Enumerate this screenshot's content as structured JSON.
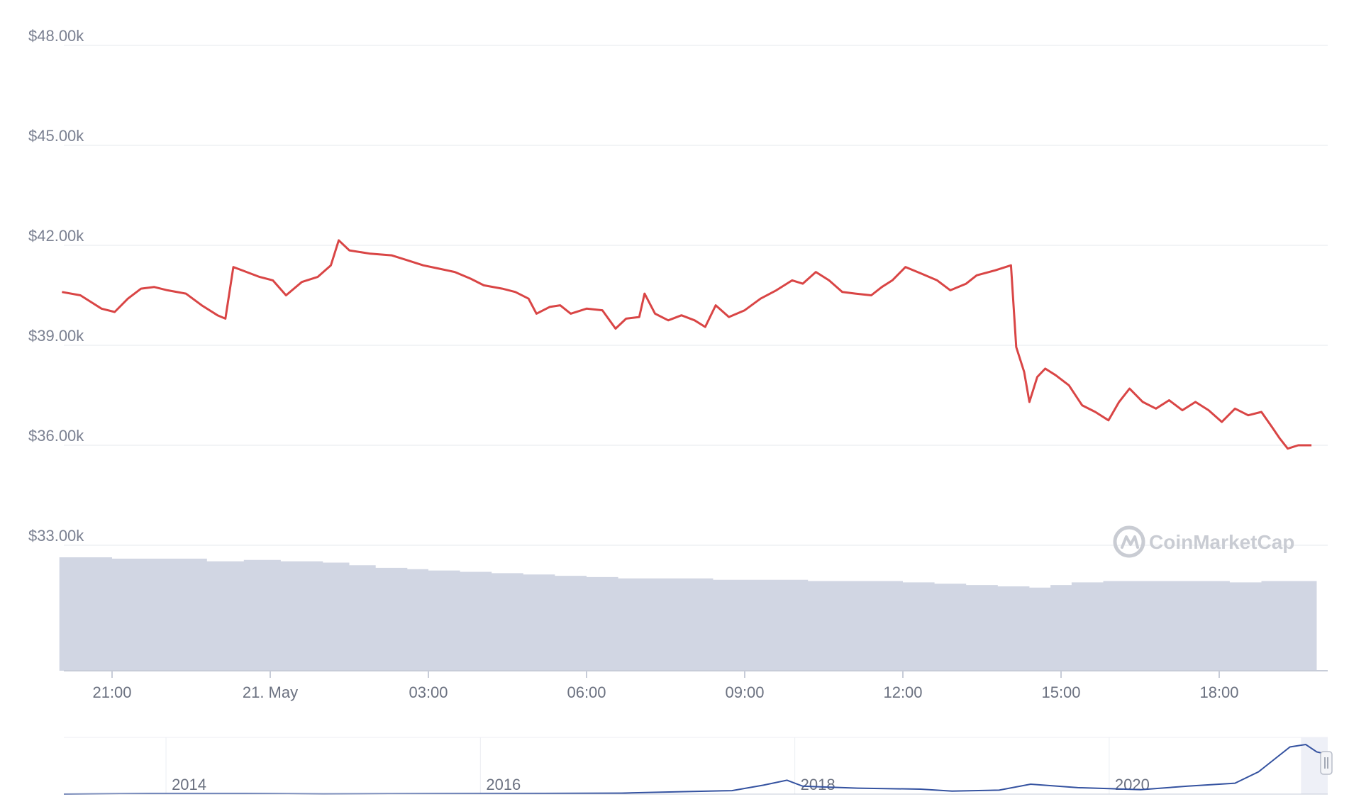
{
  "chart_data": {
    "type": "line",
    "title": "",
    "xlabel": "",
    "ylabel": "",
    "y_axis": {
      "range": [
        30000,
        48000
      ],
      "ticks": [
        {
          "value": 48000,
          "label": "$48.00k"
        },
        {
          "value": 45000,
          "label": "$45.00k"
        },
        {
          "value": 42000,
          "label": "$42.00k"
        },
        {
          "value": 39000,
          "label": "$39.00k"
        },
        {
          "value": 36000,
          "label": "$36.00k"
        },
        {
          "value": 33000,
          "label": "$33.00k"
        }
      ]
    },
    "x_axis": {
      "range_hours": [
        20.0,
        43.85
      ],
      "ticks": [
        {
          "value": 21,
          "label": "21:00"
        },
        {
          "value": 24,
          "label": "21. May"
        },
        {
          "value": 27,
          "label": "03:00"
        },
        {
          "value": 30,
          "label": "06:00"
        },
        {
          "value": 33,
          "label": "09:00"
        },
        {
          "value": 36,
          "label": "12:00"
        },
        {
          "value": 39,
          "label": "15:00"
        },
        {
          "value": 42,
          "label": "18:00"
        }
      ]
    },
    "grid": true,
    "price_series": {
      "color": "#d94545",
      "points": [
        [
          20.05,
          40.6
        ],
        [
          20.4,
          40.5
        ],
        [
          20.8,
          40.1
        ],
        [
          21.05,
          40.0
        ],
        [
          21.3,
          40.4
        ],
        [
          21.55,
          40.7
        ],
        [
          21.8,
          40.75
        ],
        [
          22.05,
          40.65
        ],
        [
          22.4,
          40.55
        ],
        [
          22.7,
          40.2
        ],
        [
          23.0,
          39.9
        ],
        [
          23.15,
          39.8
        ],
        [
          23.3,
          41.35
        ],
        [
          23.55,
          41.2
        ],
        [
          23.8,
          41.05
        ],
        [
          24.05,
          40.95
        ],
        [
          24.3,
          40.5
        ],
        [
          24.6,
          40.9
        ],
        [
          24.9,
          41.05
        ],
        [
          25.15,
          41.4
        ],
        [
          25.3,
          42.15
        ],
        [
          25.5,
          41.85
        ],
        [
          25.9,
          41.75
        ],
        [
          26.3,
          41.7
        ],
        [
          26.6,
          41.55
        ],
        [
          26.9,
          41.4
        ],
        [
          27.2,
          41.3
        ],
        [
          27.5,
          41.2
        ],
        [
          27.8,
          41.0
        ],
        [
          28.05,
          40.8
        ],
        [
          28.4,
          40.7
        ],
        [
          28.65,
          40.6
        ],
        [
          28.9,
          40.4
        ],
        [
          29.05,
          39.95
        ],
        [
          29.3,
          40.15
        ],
        [
          29.5,
          40.2
        ],
        [
          29.7,
          39.95
        ],
        [
          30.0,
          40.1
        ],
        [
          30.3,
          40.05
        ],
        [
          30.55,
          39.5
        ],
        [
          30.75,
          39.8
        ],
        [
          31.0,
          39.85
        ],
        [
          31.1,
          40.55
        ],
        [
          31.3,
          39.95
        ],
        [
          31.55,
          39.75
        ],
        [
          31.8,
          39.9
        ],
        [
          32.05,
          39.75
        ],
        [
          32.25,
          39.55
        ],
        [
          32.45,
          40.2
        ],
        [
          32.7,
          39.85
        ],
        [
          33.0,
          40.05
        ],
        [
          33.3,
          40.4
        ],
        [
          33.6,
          40.65
        ],
        [
          33.9,
          40.95
        ],
        [
          34.1,
          40.85
        ],
        [
          34.35,
          41.2
        ],
        [
          34.6,
          40.95
        ],
        [
          34.85,
          40.6
        ],
        [
          35.1,
          40.55
        ],
        [
          35.4,
          40.5
        ],
        [
          35.6,
          40.75
        ],
        [
          35.8,
          40.95
        ],
        [
          36.05,
          41.35
        ],
        [
          36.35,
          41.15
        ],
        [
          36.65,
          40.95
        ],
        [
          36.9,
          40.65
        ],
        [
          37.2,
          40.85
        ],
        [
          37.4,
          41.1
        ],
        [
          37.75,
          41.25
        ],
        [
          37.95,
          41.35
        ],
        [
          38.05,
          41.4
        ],
        [
          38.15,
          38.95
        ],
        [
          38.3,
          38.2
        ],
        [
          38.4,
          37.3
        ],
        [
          38.55,
          38.05
        ],
        [
          38.7,
          38.3
        ],
        [
          38.9,
          38.1
        ],
        [
          39.15,
          37.8
        ],
        [
          39.4,
          37.2
        ],
        [
          39.65,
          37.0
        ],
        [
          39.9,
          36.75
        ],
        [
          40.1,
          37.3
        ],
        [
          40.3,
          37.7
        ],
        [
          40.55,
          37.3
        ],
        [
          40.8,
          37.1
        ],
        [
          41.05,
          37.35
        ],
        [
          41.3,
          37.05
        ],
        [
          41.55,
          37.3
        ],
        [
          41.8,
          37.05
        ],
        [
          42.05,
          36.7
        ],
        [
          42.3,
          37.1
        ],
        [
          42.55,
          36.9
        ],
        [
          42.8,
          37.0
        ],
        [
          43.0,
          36.55
        ],
        [
          43.15,
          36.2
        ],
        [
          43.3,
          35.9
        ],
        [
          43.5,
          36.0
        ],
        [
          43.75,
          36.0
        ]
      ]
    },
    "volume_series": {
      "color": "#d1d6e3",
      "unit": "relative",
      "range": [
        0,
        1
      ],
      "points": [
        [
          20.0,
          0.86
        ],
        [
          21.0,
          0.85
        ],
        [
          22.0,
          0.85
        ],
        [
          22.8,
          0.83
        ],
        [
          23.5,
          0.84
        ],
        [
          24.2,
          0.83
        ],
        [
          25.0,
          0.82
        ],
        [
          25.5,
          0.8
        ],
        [
          26.0,
          0.78
        ],
        [
          26.6,
          0.77
        ],
        [
          27.0,
          0.76
        ],
        [
          27.6,
          0.75
        ],
        [
          28.2,
          0.74
        ],
        [
          28.8,
          0.73
        ],
        [
          29.4,
          0.72
        ],
        [
          30.0,
          0.71
        ],
        [
          30.6,
          0.7
        ],
        [
          31.2,
          0.7
        ],
        [
          31.8,
          0.7
        ],
        [
          32.4,
          0.69
        ],
        [
          33.0,
          0.69
        ],
        [
          33.6,
          0.69
        ],
        [
          34.2,
          0.68
        ],
        [
          34.8,
          0.68
        ],
        [
          35.4,
          0.68
        ],
        [
          36.0,
          0.67
        ],
        [
          36.6,
          0.66
        ],
        [
          37.2,
          0.65
        ],
        [
          37.8,
          0.64
        ],
        [
          38.4,
          0.63
        ],
        [
          38.8,
          0.65
        ],
        [
          39.2,
          0.67
        ],
        [
          39.8,
          0.68
        ],
        [
          40.4,
          0.68
        ],
        [
          41.0,
          0.68
        ],
        [
          41.6,
          0.68
        ],
        [
          42.2,
          0.67
        ],
        [
          42.8,
          0.68
        ],
        [
          43.5,
          0.68
        ],
        [
          43.85,
          0.69
        ]
      ]
    },
    "navigator": {
      "ticks": [
        {
          "value": 2014,
          "label": "2014"
        },
        {
          "value": 2016,
          "label": "2016"
        },
        {
          "value": 2018,
          "label": "2018"
        },
        {
          "value": 2020,
          "label": "2020"
        }
      ],
      "range": [
        2013.35,
        2021.39
      ],
      "color": "#3452a0",
      "fill": "#eef0f7",
      "y_range": [
        0,
        1
      ],
      "points": [
        [
          2013.35,
          0.0
        ],
        [
          2013.9,
          0.01
        ],
        [
          2014.5,
          0.01
        ],
        [
          2015.0,
          0.005
        ],
        [
          2015.8,
          0.01
        ],
        [
          2016.4,
          0.015
        ],
        [
          2016.9,
          0.02
        ],
        [
          2017.3,
          0.05
        ],
        [
          2017.6,
          0.07
        ],
        [
          2017.8,
          0.18
        ],
        [
          2017.95,
          0.28
        ],
        [
          2018.05,
          0.16
        ],
        [
          2018.4,
          0.12
        ],
        [
          2018.8,
          0.1
        ],
        [
          2019.0,
          0.06
        ],
        [
          2019.3,
          0.08
        ],
        [
          2019.5,
          0.2
        ],
        [
          2019.8,
          0.13
        ],
        [
          2020.0,
          0.11
        ],
        [
          2020.2,
          0.09
        ],
        [
          2020.5,
          0.16
        ],
        [
          2020.8,
          0.22
        ],
        [
          2020.95,
          0.45
        ],
        [
          2021.05,
          0.7
        ],
        [
          2021.15,
          0.95
        ],
        [
          2021.25,
          1.0
        ],
        [
          2021.32,
          0.85
        ],
        [
          2021.39,
          0.8
        ]
      ]
    }
  },
  "watermark": {
    "text": "CoinMarketCap"
  }
}
